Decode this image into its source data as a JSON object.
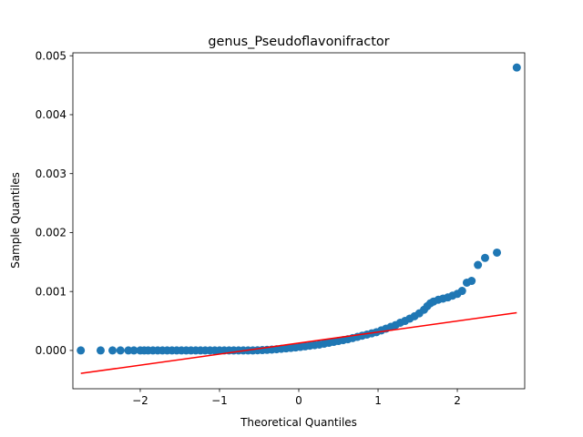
{
  "chart_data": {
    "type": "scatter",
    "title": "genus_Pseudoflavonifractor",
    "xlabel": "Theoretical Quantiles",
    "ylabel": "Sample Quantiles",
    "xlim": [
      -2.85,
      2.85
    ],
    "ylim": [
      -0.00065,
      0.00505
    ],
    "xticks": [
      {
        "value": -2,
        "label": "−2"
      },
      {
        "value": -1,
        "label": "−1"
      },
      {
        "value": 0,
        "label": "0"
      },
      {
        "value": 1,
        "label": "1"
      },
      {
        "value": 2,
        "label": "2"
      }
    ],
    "yticks": [
      {
        "value": 0.0,
        "label": "0.000"
      },
      {
        "value": 0.001,
        "label": "0.001"
      },
      {
        "value": 0.002,
        "label": "0.002"
      },
      {
        "value": 0.003,
        "label": "0.003"
      },
      {
        "value": 0.004,
        "label": "0.004"
      },
      {
        "value": 0.005,
        "label": "0.005"
      }
    ],
    "grid": false,
    "marker_color": "#1f77b4",
    "line_color": "#ff0000",
    "reference_line": {
      "x": [
        -2.75,
        2.75
      ],
      "y": [
        -0.00039,
        0.00064
      ]
    },
    "points": [
      [
        -2.75,
        0.0
      ],
      [
        -2.5,
        0.0
      ],
      [
        -2.35,
        0.0
      ],
      [
        -2.25,
        0.0
      ],
      [
        -2.15,
        0.0
      ],
      [
        -2.08,
        0.0
      ],
      [
        -2.0,
        0.0
      ],
      [
        -1.95,
        0.0
      ],
      [
        -1.9,
        0.0
      ],
      [
        -1.84,
        0.0
      ],
      [
        -1.78,
        0.0
      ],
      [
        -1.72,
        0.0
      ],
      [
        -1.66,
        0.0
      ],
      [
        -1.6,
        0.0
      ],
      [
        -1.54,
        0.0
      ],
      [
        -1.48,
        0.0
      ],
      [
        -1.42,
        0.0
      ],
      [
        -1.36,
        0.0
      ],
      [
        -1.3,
        0.0
      ],
      [
        -1.24,
        0.0
      ],
      [
        -1.18,
        0.0
      ],
      [
        -1.12,
        0.0
      ],
      [
        -1.06,
        0.0
      ],
      [
        -1.0,
        0.0
      ],
      [
        -0.94,
        0.0
      ],
      [
        -0.88,
        0.0
      ],
      [
        -0.82,
        0.0
      ],
      [
        -0.76,
        0.0
      ],
      [
        -0.7,
        0.0
      ],
      [
        -0.64,
        0.0
      ],
      [
        -0.58,
        0.0
      ],
      [
        -0.52,
        3e-06
      ],
      [
        -0.46,
        6e-06
      ],
      [
        -0.4,
        1e-05
      ],
      [
        -0.34,
        1.5e-05
      ],
      [
        -0.28,
        2e-05
      ],
      [
        -0.22,
        2.8e-05
      ],
      [
        -0.16,
        3.5e-05
      ],
      [
        -0.1,
        4.3e-05
      ],
      [
        -0.04,
        5e-05
      ],
      [
        0.02,
        6e-05
      ],
      [
        0.08,
        7e-05
      ],
      [
        0.14,
        8e-05
      ],
      [
        0.2,
        9e-05
      ],
      [
        0.26,
        0.0001
      ],
      [
        0.32,
        0.000115
      ],
      [
        0.38,
        0.00013
      ],
      [
        0.44,
        0.000145
      ],
      [
        0.5,
        0.00016
      ],
      [
        0.56,
        0.000175
      ],
      [
        0.62,
        0.00019
      ],
      [
        0.68,
        0.00021
      ],
      [
        0.74,
        0.00023
      ],
      [
        0.8,
        0.00025
      ],
      [
        0.86,
        0.00027
      ],
      [
        0.92,
        0.00029
      ],
      [
        0.98,
        0.00031
      ],
      [
        1.04,
        0.00034
      ],
      [
        1.1,
        0.00037
      ],
      [
        1.16,
        0.0004
      ],
      [
        1.22,
        0.00043
      ],
      [
        1.28,
        0.00047
      ],
      [
        1.34,
        0.0005
      ],
      [
        1.4,
        0.00054
      ],
      [
        1.46,
        0.00058
      ],
      [
        1.52,
        0.00063
      ],
      [
        1.58,
        0.00069
      ],
      [
        1.62,
        0.00075
      ],
      [
        1.66,
        0.0008
      ],
      [
        1.7,
        0.00083
      ],
      [
        1.76,
        0.00086
      ],
      [
        1.82,
        0.00088
      ],
      [
        1.88,
        0.0009
      ],
      [
        1.94,
        0.00093
      ],
      [
        2.0,
        0.00096
      ],
      [
        2.06,
        0.00101
      ],
      [
        2.12,
        0.00115
      ],
      [
        2.18,
        0.00118
      ],
      [
        2.26,
        0.00145
      ],
      [
        2.35,
        0.00157
      ],
      [
        2.5,
        0.00166
      ],
      [
        2.75,
        0.0048
      ]
    ]
  }
}
